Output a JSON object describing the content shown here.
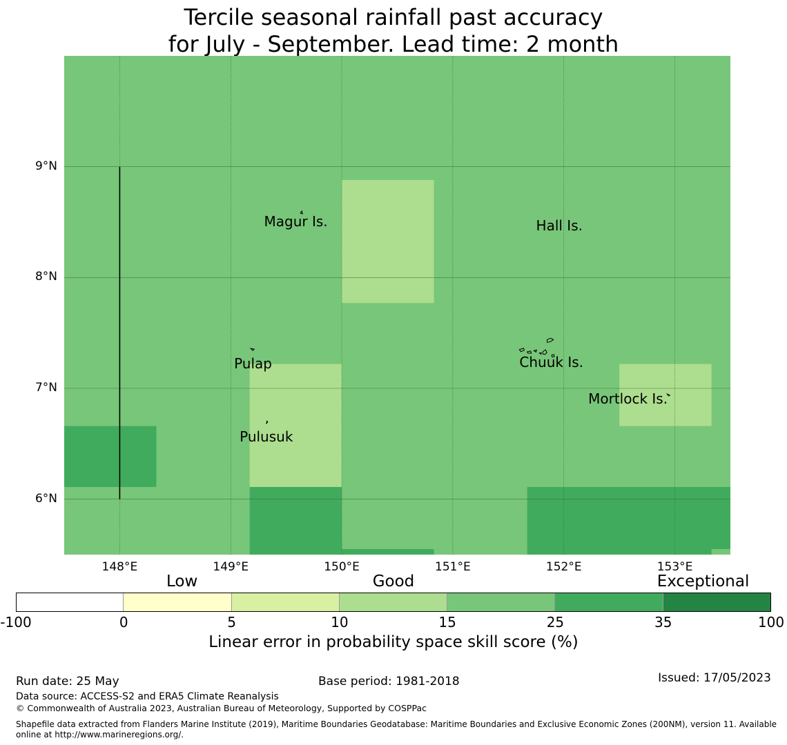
{
  "title": {
    "line1": "Tercile seasonal rainfall past accuracy",
    "line2": "for July - September. Lead time: 2 month"
  },
  "map": {
    "lon_range": [
      147.5,
      153.5
    ],
    "lat_range": [
      5.5,
      10.0
    ],
    "background_color": "#78c679",
    "lon_ticks": [
      {
        "value": 148,
        "label": "148°E"
      },
      {
        "value": 149,
        "label": "149°E"
      },
      {
        "value": 150,
        "label": "150°E"
      },
      {
        "value": 151,
        "label": "151°E"
      },
      {
        "value": 152,
        "label": "152°E"
      },
      {
        "value": 153,
        "label": "153°E"
      }
    ],
    "lat_ticks": [
      {
        "value": 9,
        "label": "9°N"
      },
      {
        "value": 8,
        "label": "8°N"
      },
      {
        "value": 7,
        "label": "7°N"
      },
      {
        "value": 6,
        "label": "6°N"
      }
    ],
    "skill_cells": [
      {
        "lon": [
          150.0,
          150.83
        ],
        "lat": [
          7.77,
          8.88
        ],
        "color": "#addd8e"
      },
      {
        "lon": [
          149.17,
          150.0
        ],
        "lat": [
          6.11,
          7.22
        ],
        "color": "#addd8e"
      },
      {
        "lon": [
          152.5,
          153.33
        ],
        "lat": [
          6.66,
          7.22
        ],
        "color": "#addd8e"
      },
      {
        "lon": [
          147.5,
          148.33
        ],
        "lat": [
          6.11,
          6.66
        ],
        "color": "#41ab5d"
      },
      {
        "lon": [
          149.17,
          150.0
        ],
        "lat": [
          5.5,
          6.11
        ],
        "color": "#41ab5d"
      },
      {
        "lon": [
          151.67,
          153.5
        ],
        "lat": [
          5.55,
          6.11
        ],
        "color": "#41ab5d"
      },
      {
        "lon": [
          150.0,
          150.83
        ],
        "lat": [
          5.5,
          5.55
        ],
        "color": "#41ab5d"
      },
      {
        "lon": [
          151.67,
          153.33
        ],
        "lat": [
          5.5,
          5.55
        ],
        "color": "#41ab5d"
      }
    ],
    "boundary_line": {
      "lon": 148.0,
      "lat": [
        6.0,
        9.0
      ]
    },
    "places": [
      {
        "name": "Magur Is.",
        "lon": 149.3,
        "lat": 8.5
      },
      {
        "name": "Hall Is.",
        "lon": 151.75,
        "lat": 8.46
      },
      {
        "name": "Pulap",
        "lon": 149.03,
        "lat": 7.22
      },
      {
        "name": "Chuuk Is.",
        "lon": 151.6,
        "lat": 7.23
      },
      {
        "name": "Mortlock Is.",
        "lon": 152.22,
        "lat": 6.9
      },
      {
        "name": "Pulusuk",
        "lon": 149.08,
        "lat": 6.56
      }
    ]
  },
  "colorbar": {
    "categories": [
      {
        "label": "Low",
        "position": 0.22
      },
      {
        "label": "Good",
        "position": 0.5
      },
      {
        "label": "Exceptional",
        "position": 0.91
      }
    ],
    "segments": [
      {
        "from": -100,
        "to": 0,
        "color": "#ffffff"
      },
      {
        "from": 0,
        "to": 5,
        "color": "#ffffcc"
      },
      {
        "from": 5,
        "to": 10,
        "color": "#d9f0a3"
      },
      {
        "from": 10,
        "to": 15,
        "color": "#addd8e"
      },
      {
        "from": 15,
        "to": 25,
        "color": "#78c679"
      },
      {
        "from": 25,
        "to": 35,
        "color": "#41ab5d"
      },
      {
        "from": 35,
        "to": 100,
        "color": "#238443"
      }
    ],
    "ticks": [
      "-100",
      "0",
      "5",
      "10",
      "15",
      "25",
      "35",
      "100"
    ],
    "label": "Linear error in probability space skill score (%)"
  },
  "footer": {
    "run_date": "Run date: 25 May",
    "base_period": "Base period: 1981-2018",
    "issued": "Issued: 17/05/2023",
    "data_source": "Data source: ACCESS-S2 and ERA5 Climate Reanalysis",
    "copyright": "© Commonwealth of Australia 2023, Australian Bureau of Meteorology, Supported by COSPPac",
    "shapefile_line1": "Shapefile data extracted from Flanders Marine Institute (2019), Maritime Boundaries Geodatabase: Maritime Boundaries and Exclusive Economic Zones (200NM), version 11. Available",
    "shapefile_line2": "online at http://www.marineregions.org/."
  }
}
